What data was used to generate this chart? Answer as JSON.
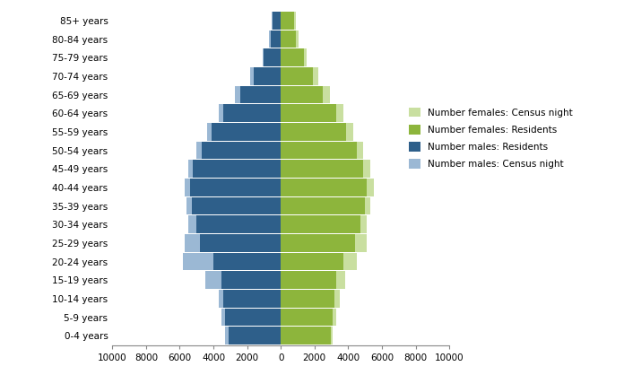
{
  "age_groups": [
    "0-4 years",
    "5-9 years",
    "10-14 years",
    "15-19 years",
    "20-24 years",
    "25-29 years",
    "30-34 years",
    "35-39 years",
    "40-44 years",
    "45-49 years",
    "50-54 years",
    "55-59 years",
    "60-64 years",
    "65-69 years",
    "70-74 years",
    "75-79 years",
    "80-84 years",
    "85+ years"
  ],
  "males_residents": [
    3100,
    3300,
    3400,
    3500,
    4000,
    4800,
    5000,
    5300,
    5400,
    5200,
    4700,
    4100,
    3400,
    2400,
    1600,
    1000,
    600,
    500
  ],
  "males_census_night": [
    3300,
    3500,
    3700,
    4500,
    5800,
    5700,
    5500,
    5600,
    5700,
    5500,
    5000,
    4400,
    3700,
    2700,
    1800,
    1100,
    700,
    550
  ],
  "females_residents": [
    2950,
    3100,
    3200,
    3300,
    3700,
    4400,
    4700,
    5000,
    5100,
    4900,
    4500,
    3900,
    3300,
    2500,
    1900,
    1350,
    900,
    800
  ],
  "females_census_night": [
    3100,
    3300,
    3500,
    3800,
    4500,
    5100,
    5100,
    5300,
    5500,
    5300,
    4900,
    4300,
    3700,
    2900,
    2200,
    1550,
    1050,
    900
  ],
  "color_males_residents": "#2E5F8A",
  "color_males_census_night": "#9BB8D4",
  "color_females_residents": "#8DB53C",
  "color_females_census_night": "#C9DFA0",
  "xlim": 10000,
  "xticklabels": [
    "10000",
    "8000",
    "6000",
    "4000",
    "2000",
    "0",
    "2000",
    "4000",
    "6000",
    "8000",
    "10000"
  ],
  "legend_labels": [
    "Number females: Census night",
    "Number females: Residents",
    "Number males: Residents",
    "Number males: Census night"
  ],
  "legend_colors": [
    "#C9DFA0",
    "#8DB53C",
    "#2E5F8A",
    "#9BB8D4"
  ],
  "background_color": "#FFFFFF"
}
